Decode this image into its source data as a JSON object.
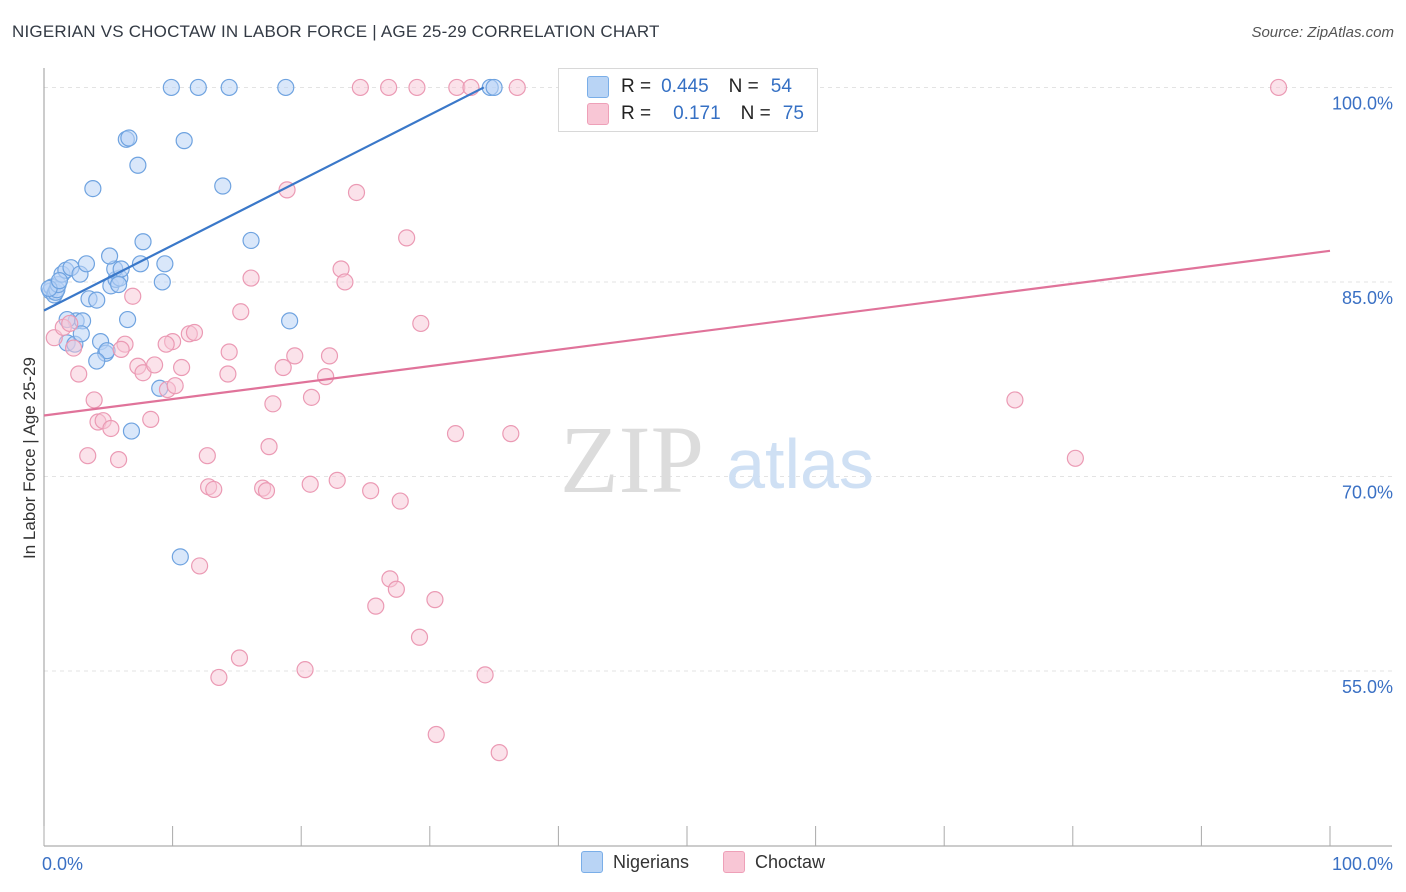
{
  "title": "NIGERIAN VS CHOCTAW IN LABOR FORCE | AGE 25-29 CORRELATION CHART",
  "source": "Source: ZipAtlas.com",
  "watermark": {
    "zip": "ZIP",
    "atlas": "atlas"
  },
  "stats": [
    {
      "r_label": "R =",
      "r_value": "0.445",
      "n_label": "N =",
      "n_value": "54",
      "color": "#7aaee8",
      "fill": "#b9d4f5"
    },
    {
      "r_label": "R =",
      "r_value": "0.171",
      "n_label": "N =",
      "n_value": "75",
      "color": "#eea0b8",
      "fill": "#f8c6d5"
    }
  ],
  "legend": [
    {
      "label": "Nigerians",
      "fill": "#b9d4f5",
      "stroke": "#7aaee8"
    },
    {
      "label": "Choctaw",
      "fill": "#f8c6d5",
      "stroke": "#eea0b8"
    }
  ],
  "chart_data": {
    "type": "scatter",
    "title": "NIGERIAN VS CHOCTAW IN LABOR FORCE | AGE 25-29 CORRELATION CHART",
    "xlabel": "",
    "ylabel": "In Labor Force | Age 25-29",
    "xlim": [
      0,
      100
    ],
    "ylim": [
      41.5,
      101.5
    ],
    "x_tick_labels": [
      {
        "value": 0,
        "label": "0.0%"
      },
      {
        "value": 100,
        "label": "100.0%"
      }
    ],
    "y_tick_labels": [
      {
        "value": 100,
        "label": "100.0%"
      },
      {
        "value": 85,
        "label": "85.0%"
      },
      {
        "value": 70,
        "label": "70.0%"
      },
      {
        "value": 55,
        "label": "55.0%"
      }
    ],
    "grid": true,
    "legend_position": "bottom",
    "series": [
      {
        "name": "Nigerians",
        "color": "#3a78c9",
        "trend": {
          "x": [
            0,
            34.2
          ],
          "y": [
            82.8,
            100.0
          ]
        },
        "points": [
          [
            0.5,
            84.3
          ],
          [
            0.6,
            84.6
          ],
          [
            0.8,
            84.0
          ],
          [
            0.9,
            84.2
          ],
          [
            1.0,
            84.4
          ],
          [
            1.1,
            84.8
          ],
          [
            1.4,
            85.6
          ],
          [
            1.7,
            85.9
          ],
          [
            2.1,
            86.1
          ],
          [
            2.8,
            85.6
          ],
          [
            3.3,
            86.4
          ],
          [
            2.5,
            82.0
          ],
          [
            1.8,
            82.1
          ],
          [
            3.0,
            82.0
          ],
          [
            3.5,
            83.7
          ],
          [
            4.1,
            83.6
          ],
          [
            5.2,
            84.7
          ],
          [
            5.6,
            85.2
          ],
          [
            5.9,
            85.3
          ],
          [
            5.5,
            86.0
          ],
          [
            6.0,
            86.0
          ],
          [
            7.5,
            86.4
          ],
          [
            9.4,
            86.4
          ],
          [
            9.2,
            85.0
          ],
          [
            7.7,
            88.1
          ],
          [
            16.1,
            88.2
          ],
          [
            5.1,
            87.0
          ],
          [
            1.8,
            80.3
          ],
          [
            2.4,
            80.2
          ],
          [
            2.9,
            81.0
          ],
          [
            4.4,
            80.4
          ],
          [
            4.8,
            79.5
          ],
          [
            4.9,
            79.7
          ],
          [
            4.1,
            78.9
          ],
          [
            6.5,
            82.1
          ],
          [
            9.0,
            76.8
          ],
          [
            6.8,
            73.5
          ],
          [
            3.8,
            92.2
          ],
          [
            7.3,
            94.0
          ],
          [
            6.4,
            96.0
          ],
          [
            6.6,
            96.1
          ],
          [
            10.9,
            95.9
          ],
          [
            13.9,
            92.4
          ],
          [
            19.1,
            82.0
          ],
          [
            10.6,
            63.8
          ],
          [
            9.9,
            100.0
          ],
          [
            12.0,
            100.0
          ],
          [
            14.4,
            100.0
          ],
          [
            18.8,
            100.0
          ],
          [
            34.7,
            100.0
          ],
          [
            35.0,
            100.0
          ],
          [
            0.4,
            84.5
          ],
          [
            1.2,
            85.1
          ],
          [
            5.8,
            84.8
          ]
        ]
      },
      {
        "name": "Choctaw",
        "color": "#e0739a",
        "trend": {
          "x": [
            0,
            100
          ],
          "y": [
            74.7,
            87.4
          ]
        },
        "points": [
          [
            0.8,
            80.7
          ],
          [
            1.5,
            81.5
          ],
          [
            2.3,
            79.9
          ],
          [
            2.7,
            77.9
          ],
          [
            3.9,
            75.9
          ],
          [
            4.2,
            74.2
          ],
          [
            4.6,
            74.3
          ],
          [
            5.2,
            73.7
          ],
          [
            3.4,
            71.6
          ],
          [
            5.8,
            71.3
          ],
          [
            6.3,
            80.2
          ],
          [
            6.9,
            83.9
          ],
          [
            7.3,
            78.5
          ],
          [
            7.7,
            78.0
          ],
          [
            8.6,
            78.6
          ],
          [
            8.3,
            74.4
          ],
          [
            9.6,
            76.7
          ],
          [
            10.0,
            80.4
          ],
          [
            10.2,
            77.0
          ],
          [
            10.7,
            78.4
          ],
          [
            11.3,
            81.0
          ],
          [
            11.7,
            81.1
          ],
          [
            12.7,
            71.6
          ],
          [
            12.8,
            69.2
          ],
          [
            14.3,
            77.9
          ],
          [
            14.4,
            79.6
          ],
          [
            15.3,
            82.7
          ],
          [
            16.1,
            85.3
          ],
          [
            17.0,
            69.1
          ],
          [
            17.3,
            68.9
          ],
          [
            17.5,
            72.3
          ],
          [
            17.8,
            75.6
          ],
          [
            18.6,
            78.4
          ],
          [
            19.5,
            79.3
          ],
          [
            20.7,
            69.4
          ],
          [
            20.8,
            76.1
          ],
          [
            21.9,
            77.7
          ],
          [
            22.2,
            79.3
          ],
          [
            22.8,
            69.7
          ],
          [
            23.1,
            86.0
          ],
          [
            23.4,
            85.0
          ],
          [
            24.3,
            91.9
          ],
          [
            25.4,
            68.9
          ],
          [
            27.7,
            68.1
          ],
          [
            28.2,
            88.4
          ],
          [
            29.3,
            81.8
          ],
          [
            32.0,
            73.3
          ],
          [
            36.3,
            73.3
          ],
          [
            75.5,
            75.9
          ],
          [
            80.2,
            71.4
          ],
          [
            18.9,
            92.1
          ],
          [
            12.1,
            63.1
          ],
          [
            15.2,
            56.0
          ],
          [
            13.6,
            54.5
          ],
          [
            20.3,
            55.1
          ],
          [
            26.9,
            62.1
          ],
          [
            27.4,
            61.3
          ],
          [
            25.8,
            60.0
          ],
          [
            30.4,
            60.5
          ],
          [
            29.2,
            57.6
          ],
          [
            30.5,
            50.1
          ],
          [
            34.3,
            54.7
          ],
          [
            35.4,
            48.7
          ],
          [
            24.6,
            100.0
          ],
          [
            26.8,
            100.0
          ],
          [
            29.0,
            100.0
          ],
          [
            32.1,
            100.0
          ],
          [
            33.2,
            100.0
          ],
          [
            36.8,
            100.0
          ],
          [
            45.2,
            100.0
          ],
          [
            96.0,
            100.0
          ],
          [
            2.0,
            81.8
          ],
          [
            13.2,
            69.0
          ],
          [
            6.0,
            79.8
          ],
          [
            9.5,
            80.2
          ]
        ]
      }
    ]
  }
}
